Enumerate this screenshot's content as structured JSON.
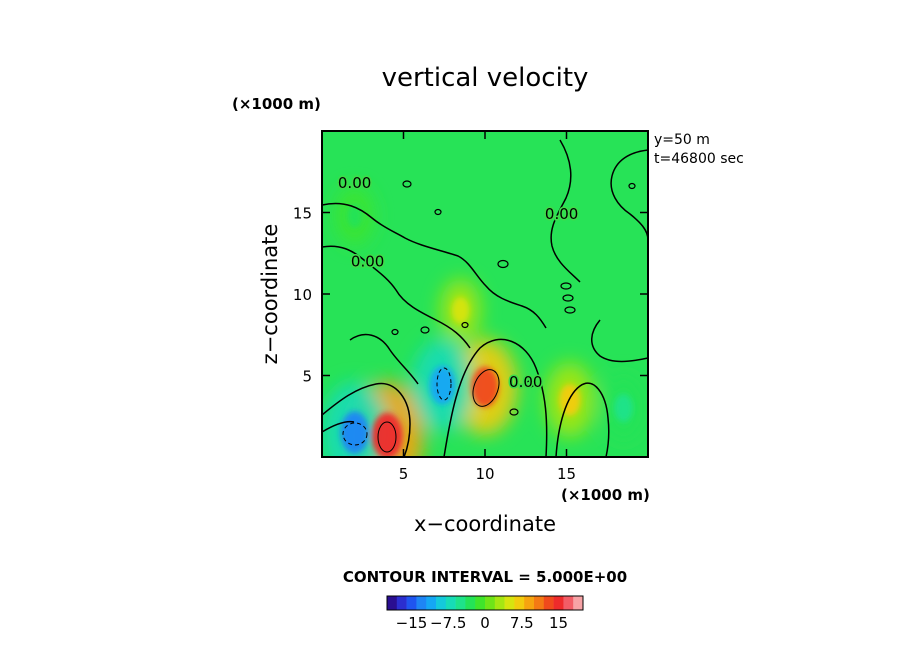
{
  "chart_data": {
    "type": "heatmap",
    "title": "vertical velocity",
    "xlabel": "x−coordinate",
    "ylabel": "z−coordinate",
    "x_unit": "(×1000 m)",
    "z_unit": "(×1000 m)",
    "xlim": [
      0,
      20
    ],
    "ylim": [
      0,
      20
    ],
    "x_ticks": [
      5,
      10,
      15
    ],
    "y_ticks": [
      5,
      10,
      15
    ],
    "x_tick_labels": [
      "5",
      "10",
      "15"
    ],
    "y_tick_labels": [
      "5",
      "10",
      "15"
    ],
    "info_lines": [
      "y=50  m",
      "t=46800 sec"
    ],
    "contour_interval_text": "CONTOUR INTERVAL = 5.000E+00",
    "contour_labels": [
      {
        "text": "0.00",
        "x": 2.0,
        "z": 16.5
      },
      {
        "text": "0.00",
        "x": 2.8,
        "z": 11.7
      },
      {
        "text": "0.00",
        "x": 14.7,
        "z": 14.6
      },
      {
        "text": "0.00",
        "x": 12.5,
        "z": 4.3
      }
    ],
    "field_features": [
      {
        "kind": "positive",
        "x": 4.0,
        "z": 1.3,
        "peak": 15
      },
      {
        "kind": "positive",
        "x": 10.0,
        "z": 4.3,
        "peak": 12
      },
      {
        "kind": "positive",
        "x": 15.2,
        "z": 3.5,
        "peak": 7
      },
      {
        "kind": "positive",
        "x": 8.5,
        "z": 9.0,
        "peak": 4
      },
      {
        "kind": "negative",
        "x": 2.0,
        "z": 1.5,
        "peak": -13
      },
      {
        "kind": "negative",
        "x": 7.4,
        "z": 4.4,
        "peak": -11
      },
      {
        "kind": "negative",
        "x": 18.5,
        "z": 3.0,
        "peak": -5
      },
      {
        "kind": "negative",
        "x": 2.0,
        "z": 14.8,
        "peak": -3
      }
    ],
    "colorbar": {
      "colors": [
        "#2a0e91",
        "#2b2ed0",
        "#1f55f0",
        "#1e85f5",
        "#15a7f4",
        "#14c9dc",
        "#17dcb7",
        "#1ee38a",
        "#24e357",
        "#3fe42b",
        "#6fe418",
        "#a6e612",
        "#d7e40f",
        "#f2cc0e",
        "#f6a40f",
        "#f47a14",
        "#f04a1c",
        "#ee2b2b",
        "#f25d66",
        "#f7a3a6"
      ],
      "tick_values": [
        -15,
        -7.5,
        0,
        7.5,
        15
      ],
      "tick_labels": [
        "−15",
        "−7.5",
        "0",
        "7.5",
        "15"
      ],
      "min": -20,
      "max": 20
    }
  }
}
